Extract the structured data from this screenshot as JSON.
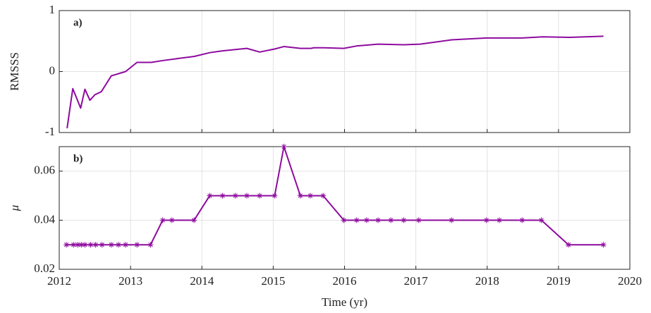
{
  "chart_data": [
    {
      "type": "line",
      "annotation": "a)",
      "ylabel": "RMSSS",
      "color": "#8e0b9e",
      "grid": true,
      "x": [
        2012.11,
        2012.19,
        2012.3,
        2012.36,
        2012.43,
        2012.5,
        2012.59,
        2012.73,
        2012.93,
        2013.09,
        2013.29,
        2013.45,
        2013.64,
        2013.84,
        2013.9,
        2014.11,
        2014.29,
        2014.63,
        2014.81,
        2015.02,
        2015.15,
        2015.38,
        2015.53,
        2015.57,
        2015.71,
        2015.99,
        2016.17,
        2016.47,
        2016.83,
        2017.06,
        2017.5,
        2017.99,
        2018.49,
        2018.78,
        2019.16,
        2019.63
      ],
      "values": [
        -0.93,
        -0.28,
        -0.6,
        -0.29,
        -0.47,
        -0.38,
        -0.33,
        -0.07,
        0.0,
        0.15,
        0.15,
        0.18,
        0.21,
        0.24,
        0.25,
        0.31,
        0.34,
        0.38,
        0.32,
        0.37,
        0.41,
        0.38,
        0.38,
        0.39,
        0.39,
        0.38,
        0.42,
        0.45,
        0.44,
        0.45,
        0.52,
        0.55,
        0.55,
        0.57,
        0.56,
        0.58
      ],
      "xlim": [
        2012,
        2020
      ],
      "xticks": [
        2012,
        2013,
        2014,
        2015,
        2016,
        2017,
        2018,
        2019,
        2020
      ],
      "ylim": [
        -1,
        1
      ],
      "yticks": [
        -1,
        0,
        1
      ]
    },
    {
      "type": "line",
      "annotation": "b)",
      "ylabel": "μ",
      "xlabel": "Time (yr)",
      "color": "#8e0b9e",
      "marker": "asterisk",
      "grid": true,
      "x": [
        2012.1,
        2012.2,
        2012.26,
        2012.31,
        2012.36,
        2012.44,
        2012.51,
        2012.6,
        2012.73,
        2012.83,
        2012.93,
        2013.09,
        2013.28,
        2013.45,
        2013.58,
        2013.89,
        2014.11,
        2014.29,
        2014.47,
        2014.63,
        2014.81,
        2015.02,
        2015.15,
        2015.38,
        2015.52,
        2015.7,
        2015.99,
        2016.17,
        2016.31,
        2016.47,
        2016.65,
        2016.83,
        2017.04,
        2017.5,
        2017.99,
        2018.17,
        2018.49,
        2018.76,
        2019.14,
        2019.63
      ],
      "values": [
        0.03,
        0.03,
        0.03,
        0.03,
        0.03,
        0.03,
        0.03,
        0.03,
        0.03,
        0.03,
        0.03,
        0.03,
        0.03,
        0.04,
        0.04,
        0.04,
        0.05,
        0.05,
        0.05,
        0.05,
        0.05,
        0.05,
        0.07,
        0.05,
        0.05,
        0.05,
        0.04,
        0.04,
        0.04,
        0.04,
        0.04,
        0.04,
        0.04,
        0.04,
        0.04,
        0.04,
        0.04,
        0.04,
        0.03,
        0.03
      ],
      "xlim": [
        2012,
        2020
      ],
      "xticks": [
        2012,
        2013,
        2014,
        2015,
        2016,
        2017,
        2018,
        2019,
        2020
      ],
      "ylim": [
        0.02,
        0.07
      ],
      "yticks": [
        0.02,
        0.04,
        0.06
      ]
    }
  ]
}
